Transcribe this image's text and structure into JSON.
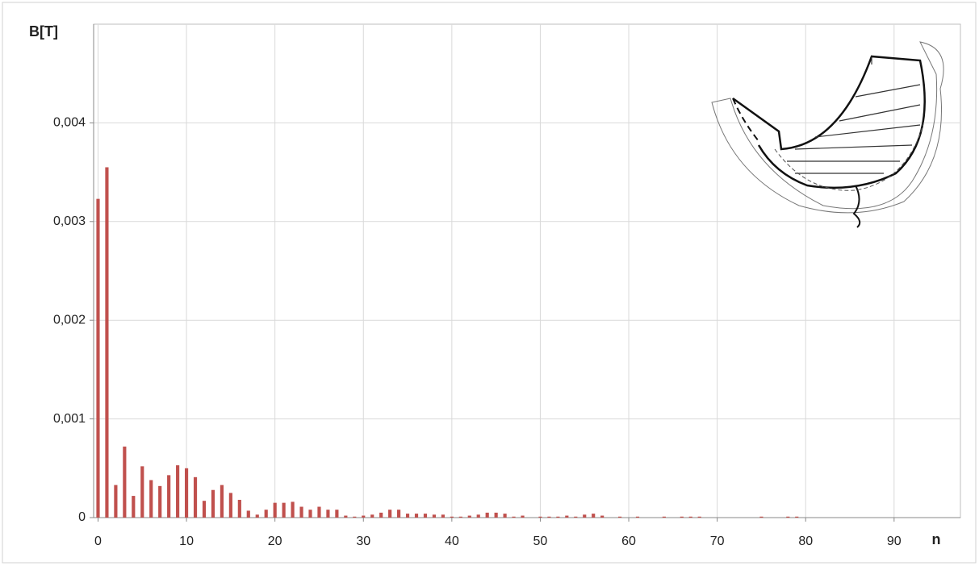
{
  "chart_data": {
    "type": "bar",
    "y_label": "B[T]",
    "x_label": "n",
    "color": "#c0504d",
    "x": [
      0,
      1,
      2,
      3,
      4,
      5,
      6,
      7,
      8,
      9,
      10,
      11,
      12,
      13,
      14,
      15,
      16,
      17,
      18,
      19,
      20,
      21,
      22,
      23,
      24,
      25,
      26,
      27,
      28,
      29,
      30,
      31,
      32,
      33,
      34,
      35,
      36,
      37,
      38,
      39,
      40,
      41,
      42,
      43,
      44,
      45,
      46,
      47,
      48,
      49,
      50,
      51,
      52,
      53,
      54,
      55,
      56,
      57,
      58,
      59,
      60,
      61,
      62,
      63,
      64,
      65,
      66,
      67,
      68,
      69,
      70,
      71,
      72,
      73,
      74,
      75,
      76,
      77,
      78,
      79,
      80,
      81,
      82,
      83,
      84,
      85,
      86,
      87,
      88,
      89,
      90,
      91,
      92,
      93,
      94,
      95,
      96,
      97
    ],
    "values": [
      0.00323,
      0.00355,
      0.00033,
      0.00072,
      0.00022,
      0.00052,
      0.00038,
      0.00032,
      0.00043,
      0.00053,
      0.0005,
      0.00041,
      0.00017,
      0.00028,
      0.00033,
      0.00025,
      0.00018,
      7e-05,
      3e-05,
      8e-05,
      0.00015,
      0.00015,
      0.00016,
      0.00011,
      8e-05,
      0.00011,
      8e-05,
      8e-05,
      2e-05,
      1e-05,
      2e-05,
      3e-05,
      5e-05,
      8e-05,
      8e-05,
      4e-05,
      4e-05,
      4e-05,
      3e-05,
      3e-05,
      1e-05,
      1e-05,
      2e-05,
      3e-05,
      5e-05,
      5e-05,
      4e-05,
      1e-05,
      2e-05,
      0,
      1e-05,
      1e-05,
      1e-05,
      2e-05,
      1e-05,
      3e-05,
      4e-05,
      2e-05,
      0,
      1e-05,
      0,
      1e-05,
      0,
      0,
      1e-05,
      0,
      1e-05,
      1e-05,
      1e-05,
      0,
      0,
      0,
      0,
      0,
      0,
      1e-05,
      0,
      0,
      1e-05,
      1e-05,
      0,
      0,
      0,
      0,
      0,
      0,
      0,
      0,
      0,
      0,
      0,
      0,
      0,
      0,
      0,
      0,
      0,
      0
    ],
    "xlim": [
      -0.5,
      97.5
    ],
    "xticks": [
      0,
      10,
      20,
      30,
      40,
      50,
      60,
      70,
      80,
      90
    ],
    "ylim": [
      0,
      0.005
    ],
    "yticks": [
      0,
      {
        "value": 0.001,
        "label": "0,001"
      },
      {
        "value": 0.002,
        "label": "0,002"
      },
      {
        "value": 0.003,
        "label": "0,003"
      },
      {
        "value": 0.004,
        "label": "0,004"
      }
    ],
    "grid": true
  }
}
